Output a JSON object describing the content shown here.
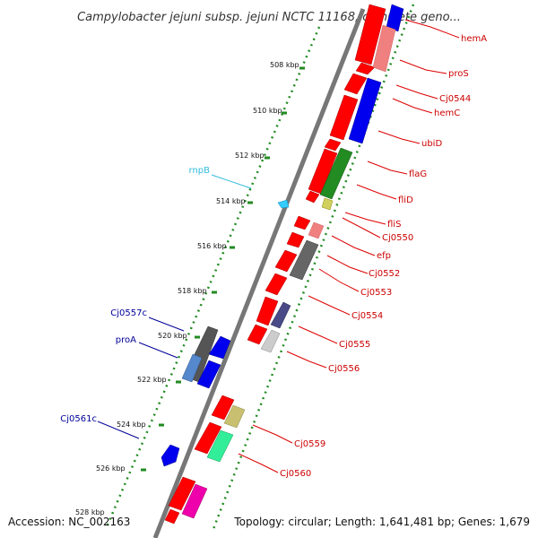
{
  "title": "Campylobacter jejuni subsp. jejuni NCTC 11168, complete geno...",
  "footer": {
    "accession": "Accession: NC_002163",
    "topology": "Topology: circular; Length: 1,641,481 bp; Genes: 1,679"
  },
  "colors": {
    "red": "#ff0000",
    "blue": "#0000ee",
    "pink": "#f08080",
    "green": "#228b22",
    "dark_gray": "#666666",
    "tan": "#c8c070",
    "cyan": "#33ccff",
    "label_red": "#cc0000",
    "label_blue": "#000099",
    "label_cyan": "#33bbdd"
  },
  "ticks": [
    "508 kbp",
    "510 kbp",
    "512 kbp",
    "514 kbp",
    "516 kbp",
    "518 kbp",
    "520 kbp",
    "522 kbp",
    "524 kbp",
    "526 kbp",
    "528 kbp"
  ],
  "gene_labels_right": [
    "hemA",
    "proS",
    "Cj0544",
    "hemC",
    "ubiD",
    "flaG",
    "fliD",
    "fliS",
    "Cj0550",
    "efp",
    "Cj0552",
    "Cj0553",
    "Cj0554",
    "Cj0555",
    "Cj0556",
    "Cj0559",
    "Cj0560"
  ],
  "gene_labels_left": [
    "rnpB",
    "Cj0557c",
    "proA",
    "Cj0561c"
  ]
}
